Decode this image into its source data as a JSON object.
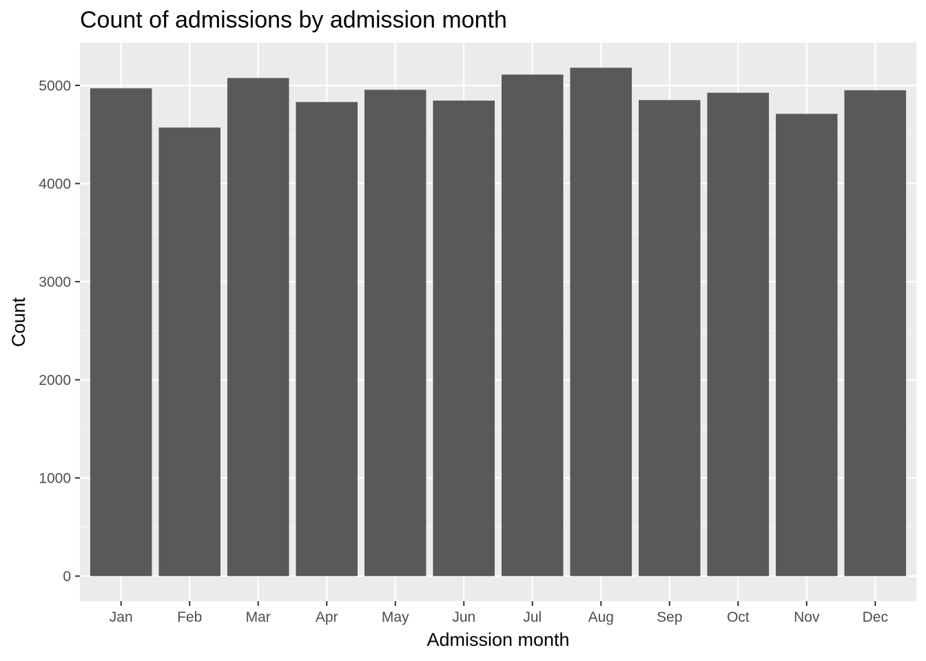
{
  "chart_data": {
    "type": "bar",
    "title": "Count of admissions by admission month",
    "xlabel": "Admission month",
    "ylabel": "Count",
    "categories": [
      "Jan",
      "Feb",
      "Mar",
      "Apr",
      "May",
      "Jun",
      "Jul",
      "Aug",
      "Sep",
      "Oct",
      "Nov",
      "Dec"
    ],
    "values": [
      4970,
      4570,
      5075,
      4830,
      4955,
      4845,
      5110,
      5180,
      4850,
      4925,
      4710,
      4950
    ],
    "ylim": [
      -255,
      5435
    ],
    "yticks": [
      0,
      1000,
      2000,
      3000,
      4000,
      5000
    ],
    "ytick_labels": [
      "0",
      "1000",
      "2000",
      "3000",
      "4000",
      "5000"
    ],
    "grid": true,
    "legend": "none",
    "colors": {
      "bar": "#595959",
      "panel_background": "#ebebeb",
      "grid_major": "#ffffff",
      "grid_minor": "#f5f5f5",
      "tick_text": "#4d4d4d",
      "tick_mark": "#333333"
    }
  }
}
